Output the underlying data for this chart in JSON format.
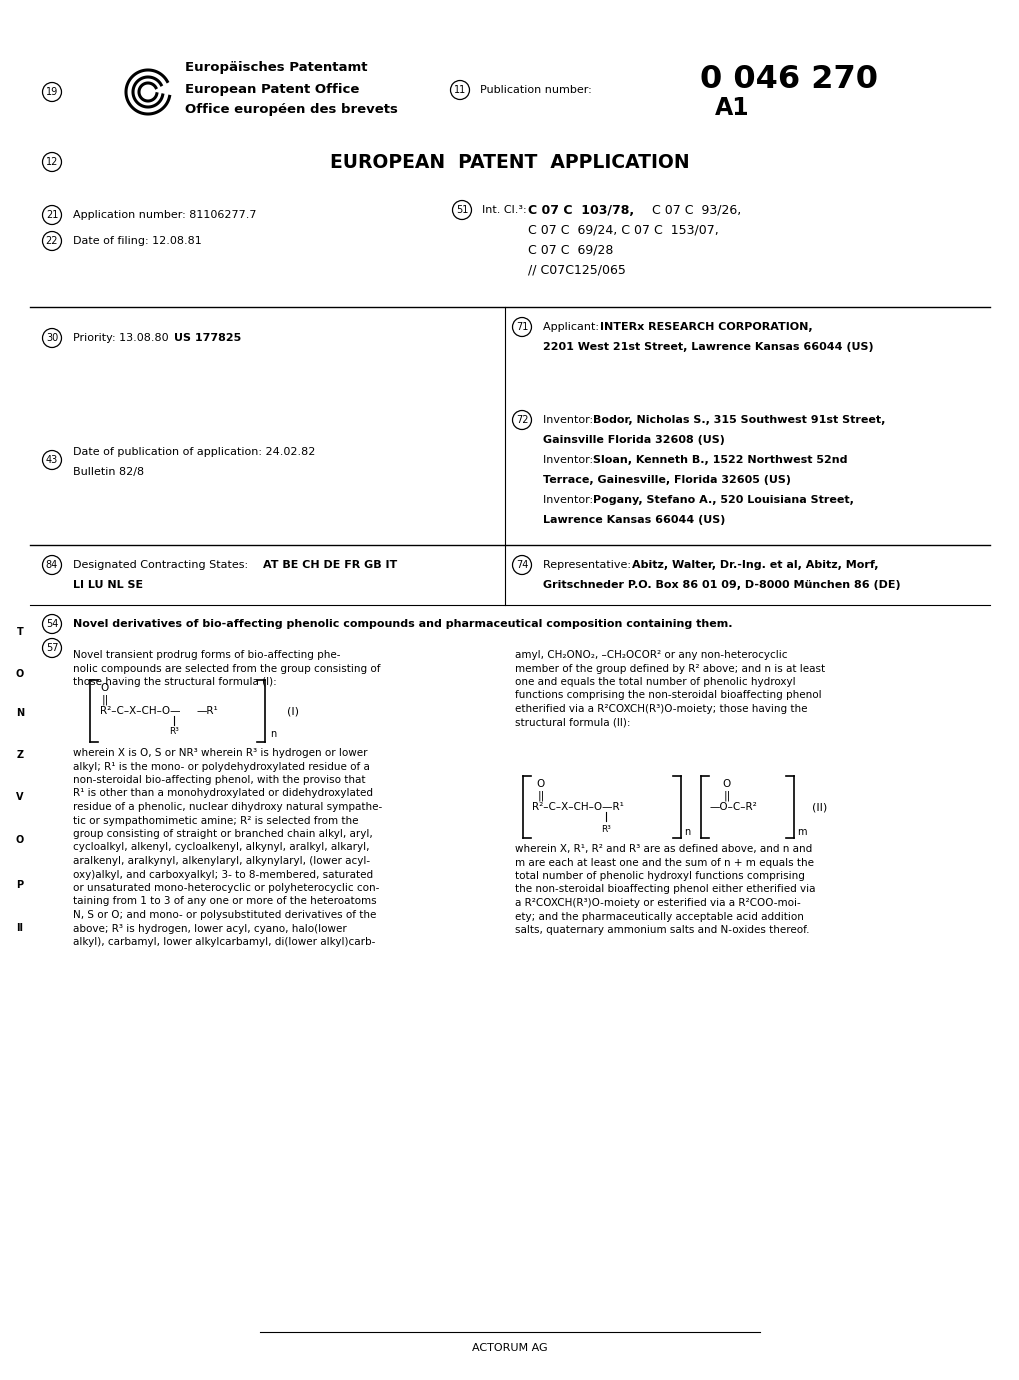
{
  "bg_color": "#ffffff",
  "pub_number": "0 046 270",
  "pub_sub": "A1",
  "epo_line1": "Europäisches Patentamt",
  "epo_line2": "European Patent Office",
  "epo_line3": "Office européen des brevets",
  "title_main": "EUROPEAN  PATENT  APPLICATION",
  "app_number": "81106277.7",
  "date_filing": "12.08.81",
  "int_cl_bold": "C 07 C  103/78,",
  "int_cl_rest1": " C 07 C  93/26,",
  "int_cl_line2": "C 07 C  69/24, C 07 C  153/07,",
  "int_cl_line3": "C 07 C  69/28",
  "int_cl_line4": "// C07C125/065",
  "priority_val": "13.08.80  US 177825",
  "priority_bold": "US 177825",
  "applicant_bold": "INTERx RESEARCH CORPORATION,",
  "applicant2": "2201 West 21st Street, Lawrence Kansas 66044 (US)",
  "pub_date": "24.02.82",
  "pub_bulletin": "Bulletin 82/8",
  "inv1_bold": "Bodor, Nicholas S., 315 Southwest 91st Street,",
  "inv1_2": "Gainsville Florida 32608 (US)",
  "inv2_bold": "Sloan, Kenneth B., 1522 Northwest 52nd",
  "inv2_2": "Terrace, Gainesville, Florida 32605 (US)",
  "inv3_bold": "Pogany, Stefano A., 520 Louisiana Street,",
  "inv3_2": "Lawrence Kansas 66044 (US)",
  "des_states": "AT BE CH DE FR GB IT",
  "des_states2": "LI LU NL SE",
  "rep_bold": "Abitz, Walter, Dr.-Ing. et al, Abitz, Morf,",
  "rep2": "Gritschneder P.O. Box 86 01 09, D-8000 München 86 (DE)",
  "abstract_title": "Novel derivatives of bio-affecting phenolic compounds and pharmaceutical composition containing them.",
  "footer": "ACTORUM AG",
  "col1_intro_l1": "Novel transient prodrug forms of bio-affecting phe-",
  "col1_intro_l2": "nolic compounds are selected from the group consisting of",
  "col1_intro_l3": "those having the structural formula (I):",
  "col1_w_l1": "wherein X is O, S or NR³ wherein R³ is hydrogen or lower",
  "col1_w_l2": "alkyl; R¹ is the mono- or polydehydroxylated residue of a",
  "col1_w_l3": "non-steroidal bio-affecting phenol, with the proviso that",
  "col1_w_l4": "R¹ is other than a monohydroxylated or didehydroxylated",
  "col1_w_l5": "residue of a phenolic, nuclear dihydroxy natural sympathe-",
  "col1_w_l6": "tic or sympathomimetic amine; R² is selected from the",
  "col1_w_l7": "group consisting of straight or branched chain alkyl, aryl,",
  "col1_w_l8": "cycloalkyl, alkenyl, cycloalkenyl, alkynyl, aralkyl, alkaryl,",
  "col1_w_l9": "aralkenyl, aralkynyl, alkenylaryl, alkynylaryl, (lower acyl-",
  "col1_w_l10": "oxy)alkyl, and carboxyalkyl; 3- to 8-membered, saturated",
  "col1_w_l11": "or unsaturated mono-heterocyclic or polyheterocyclic con-",
  "col1_w_l12": "taining from 1 to 3 of any one or more of the heteroatoms",
  "col1_w_l13": "N, S or O; and mono- or polysubstituted derivatives of the",
  "col1_w_l14": "above; R³ is hydrogen, lower acyl, cyano, halo(lower",
  "col1_w_l15": "alkyl), carbamyl, lower alkylcarbamyl, di(lower alkyl)carb-",
  "col2_l1": "amyl, CH₂ONO₂, –CH₂OCOR² or any non-heterocyclic",
  "col2_l2": "member of the group defined by R² above; and n is at least",
  "col2_l3": "one and equals the total number of phenolic hydroxyl",
  "col2_l4": "functions comprising the non-steroidal bioaffecting phenol",
  "col2_l5": "etherified via a R²COXCH(R³)O-moiety; those having the",
  "col2_l6": "structural formula (II):",
  "col2b_l1": "wherein X, R¹, R² and R³ are as defined above, and n and",
  "col2b_l2": "m are each at least one and the sum of n + m equals the",
  "col2b_l3": "total number of phenolic hydroxyl functions comprising",
  "col2b_l4": "the non-steroidal bioaffecting phenol either etherified via",
  "col2b_l5": "a R²COXCH(R³)O-moiety or esterified via a R²COO-moi-",
  "col2b_l6": "ety; and the pharmaceutically acceptable acid addition",
  "col2b_l7": "salts, quaternary ammonium salts and N-oxides thereof.",
  "formula1_line": "R²–C–X–CH–O—",
  "formula1_r1": "—R¹",
  "formula1_r3": "R³",
  "formula1_O": "O",
  "formula2_left": "R²–C–X–CH–O—R¹",
  "formula2_r3": "R³",
  "formula2_right": "—O–C–R²",
  "formula2_O": "O",
  "label_I": "(I)",
  "label_II": "(II)",
  "int_cl_label": "Int. Cl.³:",
  "side_letters": [
    "T",
    "O",
    "N",
    "Z",
    "V",
    "O",
    "P",
    "II"
  ]
}
